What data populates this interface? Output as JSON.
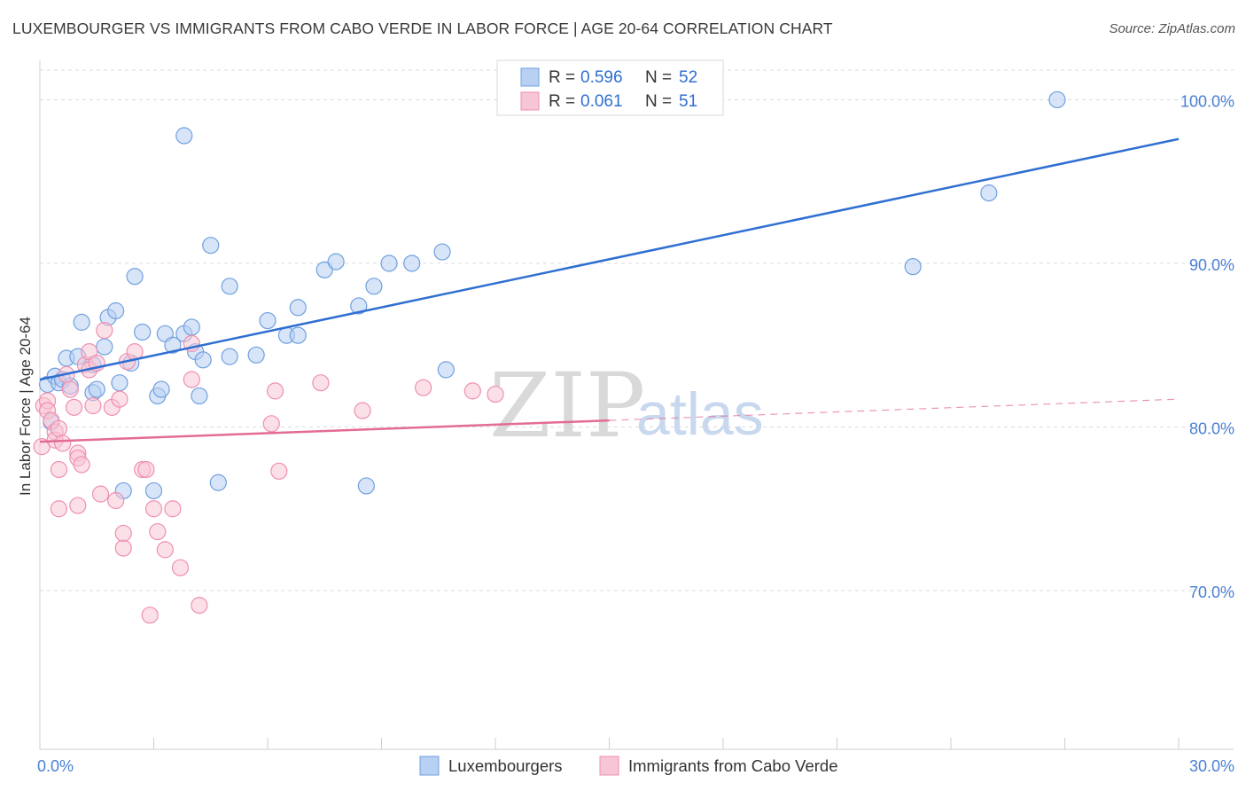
{
  "header": {
    "title": "LUXEMBOURGER VS IMMIGRANTS FROM CABO VERDE IN LABOR FORCE | AGE 20-64 CORRELATION CHART",
    "source": "Source: ZipAtlas.com"
  },
  "watermark": {
    "zip": "ZIP",
    "atlas": "atlas"
  },
  "chart_data": {
    "type": "scatter",
    "title": "LUXEMBOURGER VS IMMIGRANTS FROM CABO VERDE IN LABOR FORCE | AGE 20-64 CORRELATION CHART",
    "xlabel": "",
    "ylabel": "In Labor Force | Age 20-64",
    "xlim": [
      0,
      30
    ],
    "ylim": [
      60.3,
      102.3
    ],
    "x_tick_labels": {
      "left": "0.0%",
      "right": "30.0%"
    },
    "y_ticks": [
      {
        "value": 100,
        "label": "100.0%"
      },
      {
        "value": 90,
        "label": "90.0%"
      },
      {
        "value": 80,
        "label": "80.0%"
      },
      {
        "value": 70,
        "label": "70.0%"
      }
    ],
    "grid": true,
    "legend": {
      "placement": "top-center",
      "rows": [
        {
          "r_label": "R = ",
          "r_value": "0.596",
          "n_label": "N = ",
          "n_value": "52"
        },
        {
          "r_label": "R = ",
          "r_value": "0.061",
          "n_label": "N = ",
          "n_value": "51"
        }
      ]
    },
    "series": [
      {
        "name": "Luxembourgers",
        "color": "#6fa0e0",
        "fill": "#b8d0f2",
        "trend_color": "#2f6fd1",
        "trend": {
          "x_start": 0,
          "y_start": 82.9,
          "x_end": 30,
          "y_end": 97.6,
          "dashed_from": null
        },
        "points": [
          [
            0.2,
            82.6
          ],
          [
            0.3,
            80.3
          ],
          [
            0.4,
            83.1
          ],
          [
            0.5,
            82.7
          ],
          [
            0.6,
            82.9
          ],
          [
            0.7,
            84.2
          ],
          [
            0.8,
            82.5
          ],
          [
            1.0,
            84.3
          ],
          [
            1.1,
            86.4
          ],
          [
            1.4,
            82.1
          ],
          [
            1.4,
            83.8
          ],
          [
            1.5,
            82.3
          ],
          [
            1.7,
            84.9
          ],
          [
            1.8,
            86.7
          ],
          [
            2.0,
            87.1
          ],
          [
            2.1,
            82.7
          ],
          [
            2.2,
            76.1
          ],
          [
            2.4,
            83.9
          ],
          [
            2.5,
            89.2
          ],
          [
            2.7,
            85.8
          ],
          [
            3.0,
            76.1
          ],
          [
            3.1,
            81.9
          ],
          [
            3.2,
            82.3
          ],
          [
            3.3,
            85.7
          ],
          [
            3.5,
            85.0
          ],
          [
            3.8,
            85.7
          ],
          [
            3.8,
            97.8
          ],
          [
            4.0,
            86.1
          ],
          [
            4.1,
            84.6
          ],
          [
            4.2,
            81.9
          ],
          [
            4.3,
            84.1
          ],
          [
            4.5,
            91.1
          ],
          [
            4.7,
            76.6
          ],
          [
            5.0,
            84.3
          ],
          [
            5.0,
            88.6
          ],
          [
            5.7,
            84.4
          ],
          [
            6.0,
            86.5
          ],
          [
            6.5,
            85.6
          ],
          [
            6.8,
            85.6
          ],
          [
            6.8,
            87.3
          ],
          [
            7.5,
            89.6
          ],
          [
            7.8,
            90.1
          ],
          [
            8.4,
            87.4
          ],
          [
            8.6,
            76.4
          ],
          [
            8.8,
            88.6
          ],
          [
            9.2,
            90.0
          ],
          [
            9.8,
            90.0
          ],
          [
            10.6,
            90.7
          ],
          [
            10.7,
            83.5
          ],
          [
            23.0,
            89.8
          ],
          [
            25.0,
            94.3
          ],
          [
            26.8,
            100.0
          ]
        ]
      },
      {
        "name": "Immigrants from Cabo Verde",
        "color": "#ef8fb0",
        "fill": "#f7c6d6",
        "trend_color": "#e36b96",
        "trend": {
          "x_start": 0,
          "y_start": 79.1,
          "x_end": 30,
          "y_end": 81.7,
          "dashed_from": 15
        },
        "points": [
          [
            0.05,
            78.8
          ],
          [
            0.1,
            81.3
          ],
          [
            0.2,
            81.6
          ],
          [
            0.2,
            81.0
          ],
          [
            0.3,
            80.4
          ],
          [
            0.4,
            79.7
          ],
          [
            0.4,
            79.2
          ],
          [
            0.5,
            79.9
          ],
          [
            0.5,
            75.0
          ],
          [
            0.5,
            77.4
          ],
          [
            0.6,
            79.0
          ],
          [
            0.7,
            83.2
          ],
          [
            0.8,
            82.3
          ],
          [
            0.9,
            81.2
          ],
          [
            1.0,
            75.2
          ],
          [
            1.0,
            78.4
          ],
          [
            1.0,
            78.1
          ],
          [
            1.1,
            77.7
          ],
          [
            1.2,
            83.8
          ],
          [
            1.3,
            83.5
          ],
          [
            1.3,
            84.6
          ],
          [
            1.4,
            81.3
          ],
          [
            1.5,
            83.9
          ],
          [
            1.6,
            75.9
          ],
          [
            1.7,
            85.9
          ],
          [
            1.9,
            81.2
          ],
          [
            2.0,
            75.5
          ],
          [
            2.1,
            81.7
          ],
          [
            2.2,
            72.6
          ],
          [
            2.2,
            73.5
          ],
          [
            2.3,
            84.0
          ],
          [
            2.5,
            84.6
          ],
          [
            2.7,
            77.4
          ],
          [
            2.8,
            77.4
          ],
          [
            2.9,
            68.5
          ],
          [
            3.0,
            75.0
          ],
          [
            3.1,
            73.6
          ],
          [
            3.3,
            72.5
          ],
          [
            3.5,
            75.0
          ],
          [
            3.7,
            71.4
          ],
          [
            4.0,
            85.1
          ],
          [
            4.0,
            82.9
          ],
          [
            4.2,
            69.1
          ],
          [
            6.1,
            80.2
          ],
          [
            6.2,
            82.2
          ],
          [
            6.3,
            77.3
          ],
          [
            7.4,
            82.7
          ],
          [
            8.5,
            81.0
          ],
          [
            10.1,
            82.4
          ],
          [
            11.4,
            82.2
          ],
          [
            12.0,
            82.0
          ]
        ]
      }
    ]
  },
  "bottom_legend": [
    {
      "label": "Luxembourgers"
    },
    {
      "label": "Immigrants from Cabo Verde"
    }
  ]
}
